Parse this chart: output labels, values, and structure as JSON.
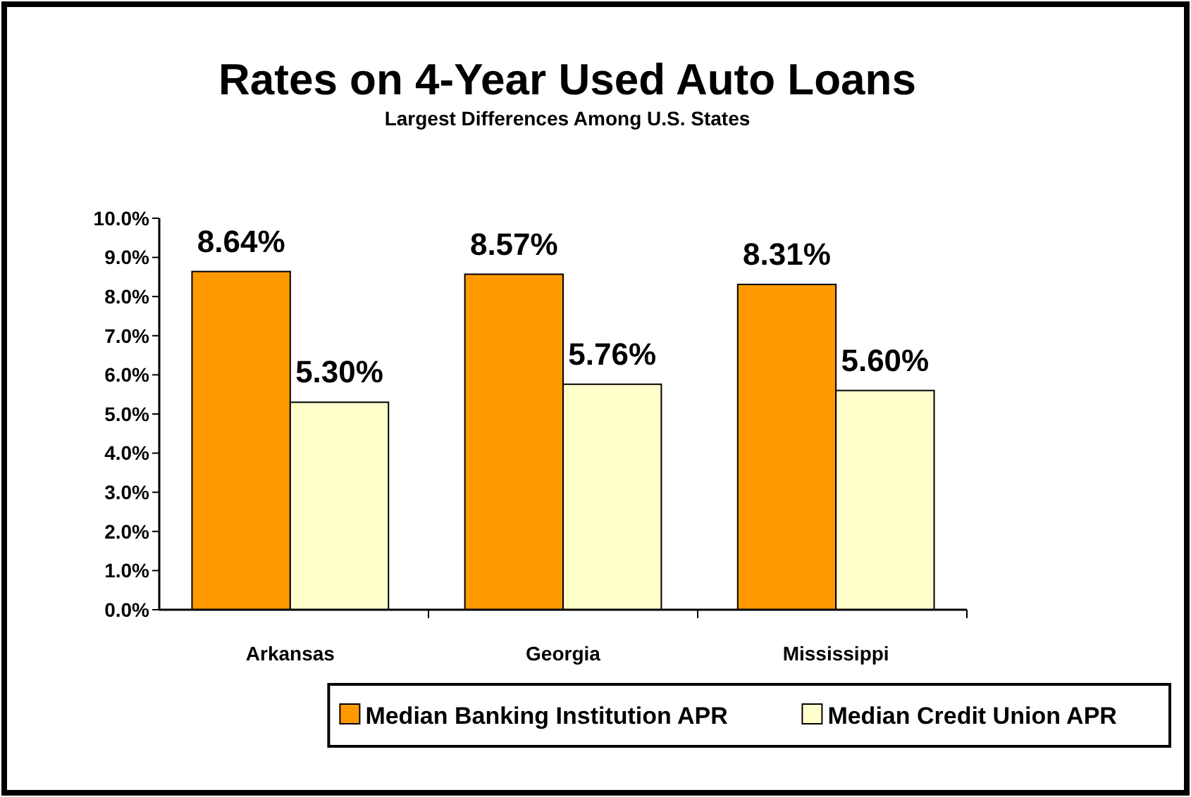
{
  "chart_data": {
    "type": "bar",
    "title": "Rates on 4-Year Used Auto Loans",
    "subtitle": "Largest Differences Among U.S. States",
    "categories": [
      "Arkansas",
      "Georgia",
      "Mississippi"
    ],
    "series": [
      {
        "name": "Median Banking Institution APR",
        "color": "#ff9900",
        "values": [
          8.64,
          8.57,
          8.31
        ],
        "value_labels": [
          "8.64%",
          "8.57%",
          "8.31%"
        ]
      },
      {
        "name": "Median Credit Union APR",
        "color": "#ffffcc",
        "values": [
          5.3,
          5.76,
          5.6
        ],
        "value_labels": [
          "5.30%",
          "5.76%",
          "5.60%"
        ]
      }
    ],
    "ylim": [
      0,
      10
    ],
    "yticks": [
      {
        "value": 0,
        "label": "0.0%"
      },
      {
        "value": 1,
        "label": "1.0%"
      },
      {
        "value": 2,
        "label": "2.0%"
      },
      {
        "value": 3,
        "label": "3.0%"
      },
      {
        "value": 4,
        "label": "4.0%"
      },
      {
        "value": 5,
        "label": "5.0%"
      },
      {
        "value": 6,
        "label": "6.0%"
      },
      {
        "value": 7,
        "label": "7.0%"
      },
      {
        "value": 8,
        "label": "8.0%"
      },
      {
        "value": 9,
        "label": "9.0%"
      },
      {
        "value": 10,
        "label": "10.0%"
      }
    ],
    "legend": "bottom"
  }
}
